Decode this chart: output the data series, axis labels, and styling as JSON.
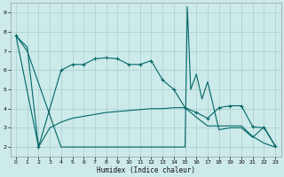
{
  "xlabel": "Humidex (Indice chaleur)",
  "background_color": "#cdeaea",
  "grid_color": "#aacccc",
  "line_color": "#006666",
  "xlim": [
    -0.5,
    23.5
  ],
  "ylim": [
    1.5,
    9.5
  ],
  "xticks": [
    0,
    1,
    2,
    3,
    4,
    5,
    6,
    7,
    8,
    9,
    10,
    11,
    12,
    13,
    14,
    15,
    16,
    17,
    18,
    19,
    20,
    21,
    22,
    23
  ],
  "yticks": [
    2,
    3,
    4,
    5,
    6,
    7,
    8,
    9
  ],
  "s1x": [
    0,
    1,
    2,
    3,
    4,
    5,
    6,
    7,
    8,
    9,
    10,
    11,
    12,
    13,
    14,
    15,
    16,
    17,
    18,
    19,
    20,
    21,
    22,
    23
  ],
  "s1y": [
    7.8,
    7.2,
    2.0,
    3.0,
    3.3,
    3.5,
    3.6,
    3.7,
    3.8,
    3.85,
    3.9,
    3.95,
    4.0,
    4.0,
    4.05,
    4.05,
    3.55,
    3.1,
    3.1,
    3.1,
    3.1,
    2.55,
    2.2,
    2.0
  ],
  "s2x": [
    0,
    2,
    4,
    5,
    6,
    7,
    8,
    9,
    10,
    11,
    12,
    13,
    14,
    15,
    16,
    17,
    18,
    19,
    20,
    21,
    22,
    23
  ],
  "s2y": [
    7.8,
    2.0,
    6.0,
    6.3,
    6.3,
    6.6,
    6.65,
    6.6,
    6.3,
    6.3,
    6.5,
    5.5,
    5.0,
    4.05,
    3.8,
    3.5,
    4.05,
    4.15,
    4.15,
    3.05,
    3.0,
    2.05
  ],
  "s3x": [
    0,
    1,
    4,
    15,
    15.2,
    15.5,
    16,
    16.5,
    17,
    18,
    19,
    20,
    21,
    22,
    23
  ],
  "s3y": [
    7.8,
    7.0,
    2.0,
    2.0,
    9.3,
    5.0,
    5.8,
    4.5,
    5.4,
    2.9,
    3.0,
    3.0,
    2.5,
    3.05,
    2.05
  ]
}
